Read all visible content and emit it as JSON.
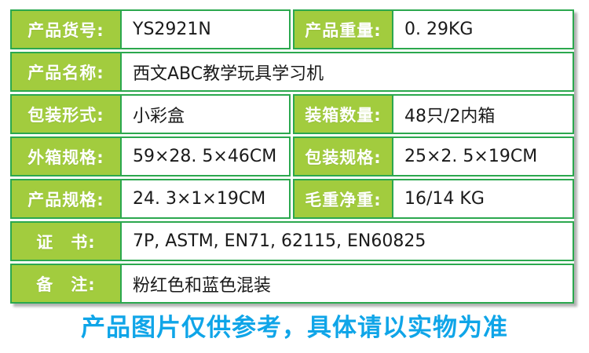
{
  "colors": {
    "label_bg": "#A2CC3E",
    "cell_border": "#2BA84E",
    "label_text": "#FFFFFF",
    "value_text": "#1A1A1A",
    "notice_text": "#0FA5E8"
  },
  "table": {
    "rows": [
      {
        "pairs": [
          {
            "label": "产品货号:",
            "value": "YS2921N"
          },
          {
            "label": "产品重量:",
            "value": "0. 29KG"
          }
        ]
      },
      {
        "label": "产品名称:",
        "value": "西文ABC教学玩具学习机"
      },
      {
        "pairs": [
          {
            "label": "包装形式:",
            "value": "小彩盒"
          },
          {
            "label": "装箱数量:",
            "value": "48只/2内箱"
          }
        ]
      },
      {
        "pairs": [
          {
            "label": "外箱规格:",
            "value": "59×28. 5×46CM"
          },
          {
            "label": "包装规格:",
            "value": "25×2. 5×19CM"
          }
        ]
      },
      {
        "pairs": [
          {
            "label": "产品规格:",
            "value": "24. 3×1×19CM"
          },
          {
            "label": "毛重净重:",
            "value": "16/14 KG"
          }
        ]
      },
      {
        "label": "证　书:",
        "value": "7P, ASTM, EN71, 62115, EN60825"
      },
      {
        "label": "备　注:",
        "value": "粉红色和蓝色混装"
      }
    ]
  },
  "footer": {
    "notice": "产品图片仅供参考，具体请以实物为准"
  }
}
